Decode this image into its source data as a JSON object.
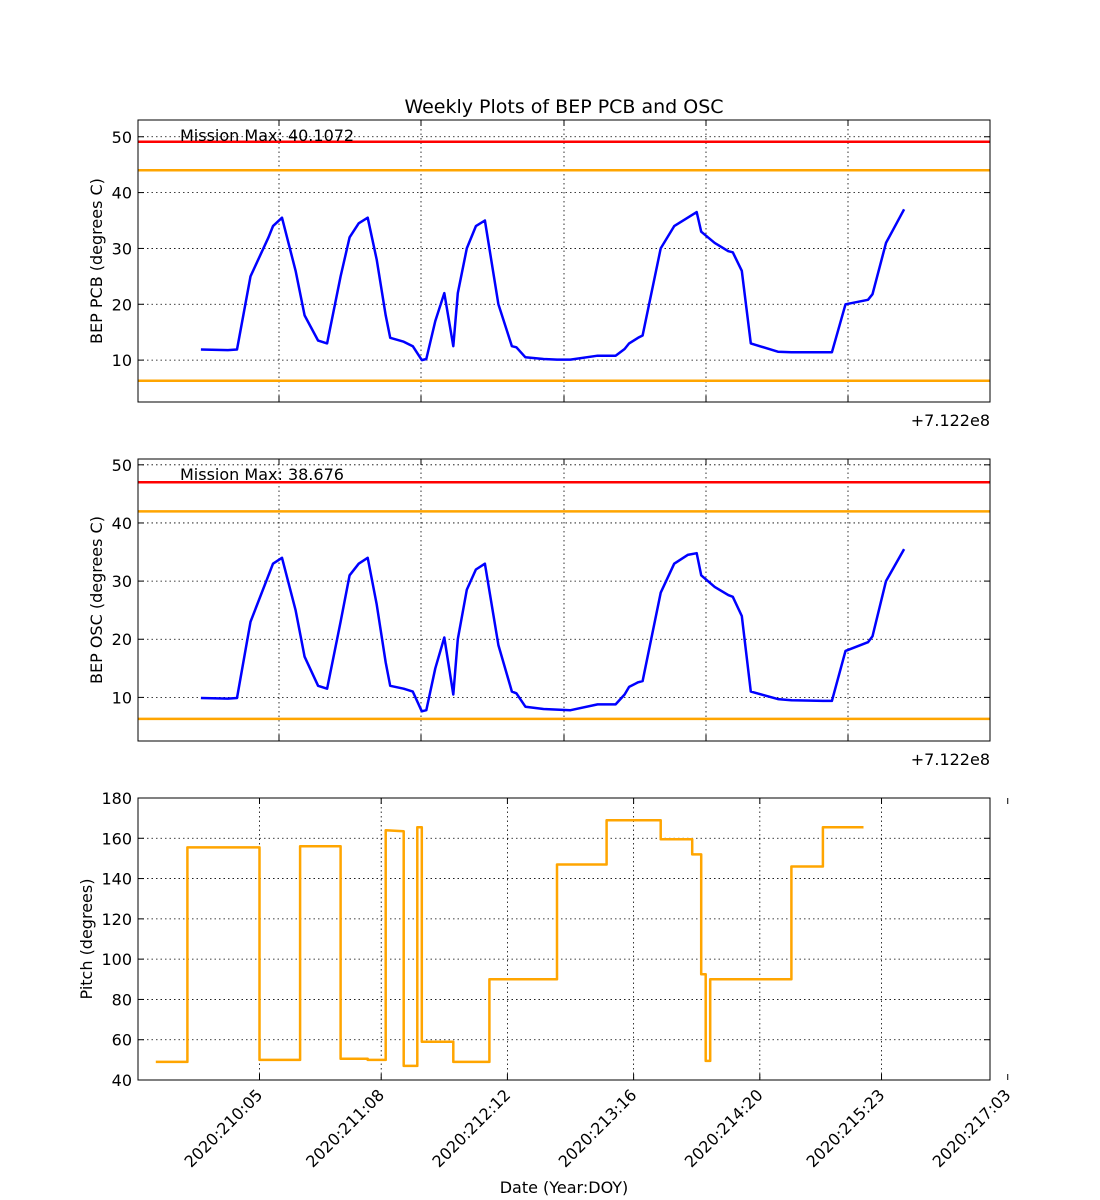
{
  "figure_title": "Weekly Plots of BEP PCB and OSC",
  "colors": {
    "data": "#0000ff",
    "red_limit": "#ff0000",
    "yellow_limit": "#ffa500",
    "pitch": "#ffa500",
    "grid": "#000000"
  },
  "chart_data": [
    {
      "type": "line",
      "title": "Weekly Plots of BEP PCB and OSC",
      "ylabel": "BEP PCB (degrees C)",
      "xlabel": "",
      "offset_label": "+7.122e8",
      "annotation": "Mission Max: 40.1072",
      "ylim": [
        2.5,
        53
      ],
      "yticks": [
        10,
        20,
        30,
        40,
        50
      ],
      "grid": true,
      "limit_lines": [
        {
          "level": "red",
          "value": 49.1
        },
        {
          "level": "yellow",
          "value": 44.0
        },
        {
          "level": "yellow",
          "value": 6.3
        }
      ],
      "series": [
        {
          "x": [
            "2020:209:16",
            "2020:209:22",
            "2020:210:00",
            "2020:210:03",
            "2020:210:07",
            "2020:210:08",
            "2020:210:10",
            "2020:210:13",
            "2020:210:15",
            "2020:210:18",
            "2020:210:20",
            "2020:210:23",
            "2020:211:01",
            "2020:211:03",
            "2020:211:05",
            "2020:211:07",
            "2020:211:09",
            "2020:211:10",
            "2020:211:13",
            "2020:211:15",
            "2020:211:17",
            "2020:211:18",
            "2020:211:20",
            "2020:211:22",
            "2020:212:00",
            "2020:212:01",
            "2020:212:03",
            "2020:212:05",
            "2020:212:07",
            "2020:212:10",
            "2020:212:13",
            "2020:212:14",
            "2020:212:16",
            "2020:212:20",
            "2020:212:23",
            "2020:213:02",
            "2020:213:08",
            "2020:213:12",
            "2020:213:14",
            "2020:213:15",
            "2020:213:17",
            "2020:213:18",
            "2020:213:22",
            "2020:214:01",
            "2020:214:04",
            "2020:214:06",
            "2020:214:07",
            "2020:214:10",
            "2020:214:13",
            "2020:214:14",
            "2020:214:16",
            "2020:214:18",
            "2020:215:00",
            "2020:215:03",
            "2020:215:10",
            "2020:215:12",
            "2020:215:15",
            "2020:215:20",
            "2020:215:21",
            "2020:216:00",
            "2020:216:04"
          ],
          "values": [
            11.9,
            11.8,
            11.9,
            25,
            32,
            34,
            35.5,
            26,
            18,
            13.5,
            13,
            25,
            32,
            34.5,
            35.5,
            28,
            18,
            14,
            13.3,
            12.5,
            10,
            10.2,
            17,
            22,
            12.5,
            22,
            30,
            34,
            35,
            20,
            12.5,
            12.3,
            10.5,
            10.2,
            10.1,
            10.1,
            10.8,
            10.8,
            12,
            13,
            14,
            14.4,
            30,
            34,
            35.5,
            36.5,
            33,
            31,
            29.5,
            29.3,
            26,
            13,
            11.5,
            11.4,
            11.4,
            11.4,
            20,
            20.8,
            21.8,
            31,
            37
          ]
        }
      ]
    },
    {
      "type": "line",
      "title": "",
      "ylabel": "BEP OSC (degrees C)",
      "xlabel": "",
      "offset_label": "+7.122e8",
      "annotation": "Mission Max: 38.676",
      "ylim": [
        2.5,
        51
      ],
      "yticks": [
        10,
        20,
        30,
        40,
        50
      ],
      "grid": true,
      "limit_lines": [
        {
          "level": "red",
          "value": 47.0
        },
        {
          "level": "yellow",
          "value": 42.0
        },
        {
          "level": "yellow",
          "value": 6.3
        }
      ],
      "series": [
        {
          "x": [
            "2020:209:16",
            "2020:209:22",
            "2020:210:00",
            "2020:210:03",
            "2020:210:07",
            "2020:210:08",
            "2020:210:10",
            "2020:210:13",
            "2020:210:15",
            "2020:210:18",
            "2020:210:20",
            "2020:210:23",
            "2020:211:01",
            "2020:211:03",
            "2020:211:05",
            "2020:211:07",
            "2020:211:09",
            "2020:211:10",
            "2020:211:13",
            "2020:211:15",
            "2020:211:17",
            "2020:211:18",
            "2020:211:20",
            "2020:211:22",
            "2020:212:00",
            "2020:212:01",
            "2020:212:03",
            "2020:212:05",
            "2020:212:07",
            "2020:212:10",
            "2020:212:13",
            "2020:212:14",
            "2020:212:16",
            "2020:212:20",
            "2020:212:23",
            "2020:213:02",
            "2020:213:08",
            "2020:213:12",
            "2020:213:14",
            "2020:213:15",
            "2020:213:17",
            "2020:213:18",
            "2020:213:22",
            "2020:214:01",
            "2020:214:04",
            "2020:214:06",
            "2020:214:07",
            "2020:214:10",
            "2020:214:13",
            "2020:214:14",
            "2020:214:16",
            "2020:214:18",
            "2020:215:00",
            "2020:215:03",
            "2020:215:10",
            "2020:215:12",
            "2020:215:15",
            "2020:215:20",
            "2020:215:21",
            "2020:216:00",
            "2020:216:04"
          ],
          "values": [
            9.9,
            9.8,
            9.9,
            23,
            31,
            33,
            34,
            25,
            17,
            12,
            11.5,
            23,
            31,
            33,
            34,
            26,
            16,
            12,
            11.5,
            11,
            7.6,
            7.8,
            15,
            20.3,
            10.5,
            20,
            28.5,
            32,
            33,
            19,
            11,
            10.7,
            8.4,
            8.0,
            7.9,
            7.8,
            8.8,
            8.8,
            10.5,
            11.8,
            12.6,
            12.8,
            28,
            33,
            34.5,
            34.8,
            31,
            29,
            27.6,
            27.3,
            24,
            11,
            9.7,
            9.5,
            9.4,
            9.4,
            18,
            19.5,
            20.5,
            30,
            35.5
          ]
        }
      ]
    },
    {
      "type": "line",
      "title": "",
      "ylabel": "Pitch (degrees)",
      "xlabel": "Date (Year:DOY)",
      "ylim": [
        40,
        180
      ],
      "yticks": [
        40,
        60,
        80,
        100,
        120,
        140,
        160,
        180
      ],
      "xtick_labels": [
        "2020:210:05",
        "2020:211:08",
        "2020:212:12",
        "2020:213:16",
        "2020:214:20",
        "2020:215:23",
        "2020:217:03"
      ],
      "grid": true,
      "series": [
        {
          "x": [
            "2020:209:06",
            "2020:209:13",
            "2020:209:13",
            "2020:210:05",
            "2020:210:05",
            "2020:210:14",
            "2020:210:14",
            "2020:210:23",
            "2020:210:23",
            "2020:211:05",
            "2020:211:05",
            "2020:211:09",
            "2020:211:09",
            "2020:211:13",
            "2020:211:13",
            "2020:211:16",
            "2020:211:16",
            "2020:211:17",
            "2020:211:17",
            "2020:212:00",
            "2020:212:00",
            "2020:212:08",
            "2020:212:08",
            "2020:212:23",
            "2020:212:23",
            "2020:213:10",
            "2020:213:10",
            "2020:213:22",
            "2020:213:22",
            "2020:214:05",
            "2020:214:05",
            "2020:214:07",
            "2020:214:07",
            "2020:214:08",
            "2020:214:08",
            "2020:214:09",
            "2020:214:09",
            "2020:215:03",
            "2020:215:03",
            "2020:215:10",
            "2020:215:10",
            "2020:215:19"
          ],
          "values": [
            49,
            49,
            155.5,
            155.5,
            50,
            50,
            156,
            156,
            50.5,
            50.5,
            50,
            50,
            164,
            163.5,
            47,
            47,
            165.5,
            165.5,
            59,
            59,
            49,
            49,
            90,
            90,
            147,
            147,
            169,
            169,
            159.5,
            159.5,
            152,
            152,
            92.5,
            92.5,
            49.5,
            49.5,
            90,
            90,
            146,
            146,
            165.5,
            165.5
          ]
        }
      ]
    }
  ]
}
